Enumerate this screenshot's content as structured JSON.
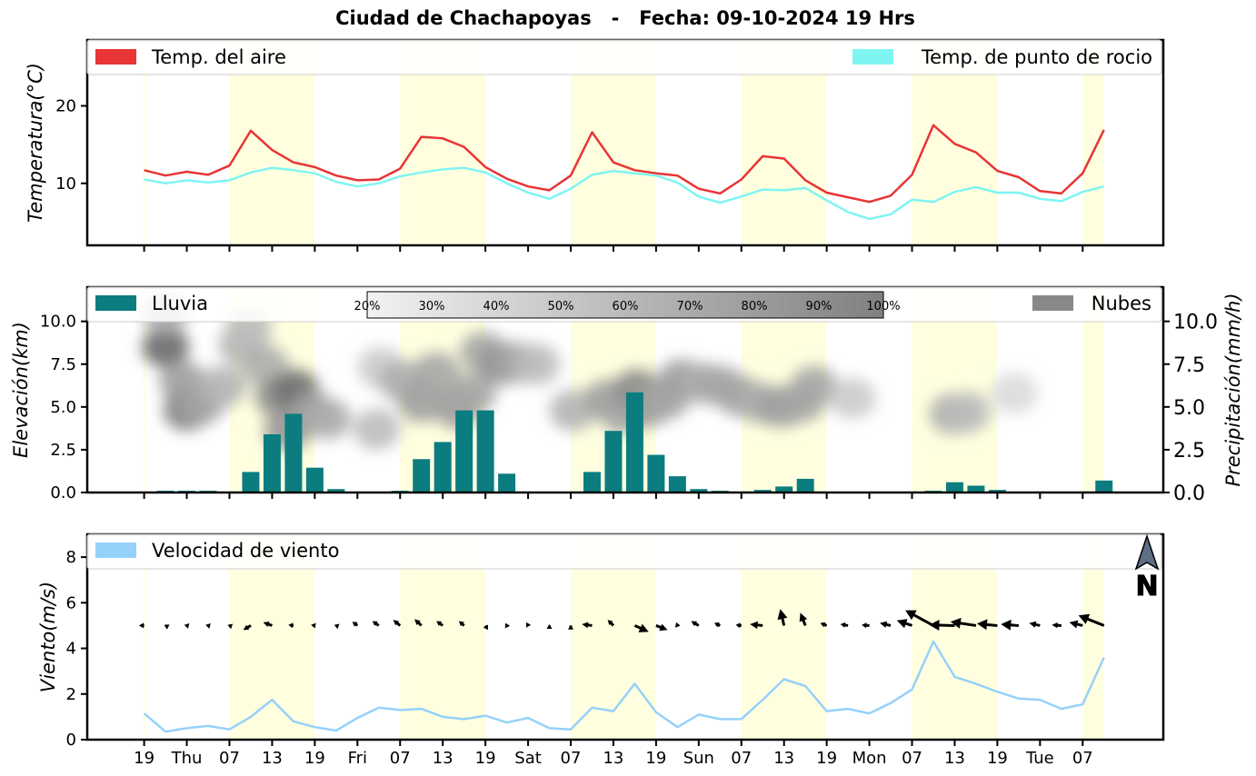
{
  "title": "Ciudad de Chachapoyas   -   Fecha: 09-10-2024 19 Hrs",
  "colors": {
    "temp": "#e83535",
    "dew": "#7ff5f2",
    "rain": "#0b7d80",
    "clouds": "#888888",
    "wind": "#96d1fa",
    "day": "#ffffe0"
  },
  "xticks": [
    "19",
    "Thu",
    "07",
    "13",
    "19",
    "Fri",
    "07",
    "13",
    "19",
    "Sat",
    "07",
    "13",
    "19",
    "Sun",
    "07",
    "13",
    "19",
    "Mon",
    "07",
    "13",
    "19",
    "Tue",
    "07"
  ],
  "chart_data": [
    {
      "type": "line",
      "ylabel": "Temperatura(°C)",
      "yticks": [
        10,
        20
      ],
      "ylim": [
        2,
        28.5
      ],
      "legend": [
        "Temp. del aire",
        "Temp. de punto de rocio"
      ],
      "series": [
        {
          "name": "Temp. del aire",
          "values": [
            11.7,
            11.0,
            11.5,
            11.1,
            12.3,
            16.8,
            14.3,
            12.7,
            12.1,
            11.0,
            10.4,
            10.5,
            11.9,
            16.0,
            15.8,
            14.7,
            12.1,
            10.6,
            9.6,
            9.1,
            11.0,
            16.6,
            12.7,
            11.7,
            11.3,
            11.0,
            9.3,
            8.7,
            10.5,
            13.5,
            13.2,
            10.4,
            8.8,
            8.2,
            7.6,
            8.4,
            11.1,
            17.5,
            15.1,
            14.0,
            11.6,
            10.8,
            9.0,
            8.7,
            11.3,
            16.9
          ]
        },
        {
          "name": "Temp. de punto de rocio",
          "values": [
            10.5,
            10.0,
            10.4,
            10.1,
            10.4,
            11.4,
            12.0,
            11.7,
            11.3,
            10.2,
            9.6,
            10.0,
            10.9,
            11.4,
            11.8,
            12.0,
            11.4,
            10.0,
            8.8,
            8.0,
            9.3,
            11.1,
            11.6,
            11.3,
            11.0,
            10.1,
            8.3,
            7.5,
            8.3,
            9.2,
            9.1,
            9.4,
            7.8,
            6.3,
            5.4,
            6.0,
            7.9,
            7.6,
            8.9,
            9.5,
            8.8,
            8.8,
            8.0,
            7.7,
            8.9,
            9.6
          ]
        }
      ]
    },
    {
      "type": "bar",
      "ylabel_left": "Elevación(km)",
      "ylabel_right": "Precipitación(mm/h)",
      "yticks": [
        "0.0",
        "2.5",
        "5.0",
        "7.5",
        "10.0"
      ],
      "ylim": [
        0,
        12
      ],
      "legend": [
        "Lluvia",
        "Nubes"
      ],
      "colorbar": [
        "20%",
        "30%",
        "40%",
        "50%",
        "60%",
        "70%",
        "80%",
        "90%",
        "100%"
      ],
      "values": [
        0,
        0.1,
        0.1,
        0.1,
        0,
        1.2,
        3.4,
        4.6,
        1.45,
        0.2,
        0,
        0,
        0.1,
        1.95,
        2.95,
        4.8,
        4.8,
        1.1,
        0,
        0,
        0,
        1.2,
        3.6,
        5.85,
        2.2,
        0.95,
        0.2,
        0.1,
        0,
        0.15,
        0.35,
        0.8,
        0.05,
        0,
        0,
        0,
        0,
        0.1,
        0.6,
        0.4,
        0.15,
        0,
        0,
        0,
        0.05,
        0.7
      ],
      "clouds": [
        {
          "x": 1,
          "y": 8.5,
          "d": 0.9
        },
        {
          "x": 1,
          "y": 10.5,
          "d": 0.45
        },
        {
          "x": 1.8,
          "y": 6.5,
          "d": 0.55
        },
        {
          "x": 2,
          "y": 4.8,
          "d": 0.75
        },
        {
          "x": 2.7,
          "y": 5.2,
          "d": 0.5
        },
        {
          "x": 3.7,
          "y": 6.2,
          "d": 0.4
        },
        {
          "x": 4.6,
          "y": 8.6,
          "d": 0.4
        },
        {
          "x": 4.9,
          "y": 9.6,
          "d": 0.35
        },
        {
          "x": 5.7,
          "y": 7.4,
          "d": 0.45
        },
        {
          "x": 6.3,
          "y": 5.6,
          "d": 0.65
        },
        {
          "x": 6.7,
          "y": 3.6,
          "d": 0.6
        },
        {
          "x": 7.1,
          "y": 6.0,
          "d": 0.85
        },
        {
          "x": 7.9,
          "y": 4.7,
          "d": 0.55
        },
        {
          "x": 8.6,
          "y": 4.3,
          "d": 0.45
        },
        {
          "x": 10.9,
          "y": 3.7,
          "d": 0.35
        },
        {
          "x": 11.1,
          "y": 7.3,
          "d": 0.25
        },
        {
          "x": 12.1,
          "y": 6.5,
          "d": 0.45
        },
        {
          "x": 13.0,
          "y": 5.3,
          "d": 0.55
        },
        {
          "x": 13.7,
          "y": 7.0,
          "d": 0.5
        },
        {
          "x": 14.7,
          "y": 4.9,
          "d": 0.55
        },
        {
          "x": 15.4,
          "y": 5.8,
          "d": 0.5
        },
        {
          "x": 15.9,
          "y": 8.2,
          "d": 0.5
        },
        {
          "x": 16.8,
          "y": 7.5,
          "d": 0.65
        },
        {
          "x": 17.4,
          "y": 7.6,
          "d": 0.5
        },
        {
          "x": 18.4,
          "y": 7.5,
          "d": 0.35
        },
        {
          "x": 20.1,
          "y": 4.8,
          "d": 0.4
        },
        {
          "x": 21.7,
          "y": 5.4,
          "d": 0.55
        },
        {
          "x": 22.5,
          "y": 4.6,
          "d": 0.5
        },
        {
          "x": 23.1,
          "y": 6.0,
          "d": 0.7
        },
        {
          "x": 23.6,
          "y": 5.0,
          "d": 0.55
        },
        {
          "x": 24.5,
          "y": 5.5,
          "d": 0.5
        },
        {
          "x": 25.2,
          "y": 6.6,
          "d": 0.55
        },
        {
          "x": 26.2,
          "y": 6.4,
          "d": 0.45
        },
        {
          "x": 27.1,
          "y": 6.2,
          "d": 0.5
        },
        {
          "x": 28.0,
          "y": 5.6,
          "d": 0.5
        },
        {
          "x": 29.0,
          "y": 5.2,
          "d": 0.45
        },
        {
          "x": 29.9,
          "y": 5.0,
          "d": 0.55
        },
        {
          "x": 30.8,
          "y": 5.3,
          "d": 0.5
        },
        {
          "x": 31.4,
          "y": 6.2,
          "d": 0.5
        },
        {
          "x": 33.2,
          "y": 5.5,
          "d": 0.25
        },
        {
          "x": 37.9,
          "y": 4.6,
          "d": 0.45
        },
        {
          "x": 38.6,
          "y": 4.7,
          "d": 0.35
        },
        {
          "x": 40.8,
          "y": 5.8,
          "d": 0.15
        }
      ]
    },
    {
      "type": "line",
      "ylabel": "Viento(m/s)",
      "yticks": [
        0,
        2,
        4,
        6,
        8
      ],
      "ylim": [
        0,
        9
      ],
      "legend": [
        "Velocidad de viento"
      ],
      "series": [
        {
          "name": "Velocidad de viento",
          "values": [
            1.15,
            0.35,
            0.5,
            0.6,
            0.45,
            1.0,
            1.75,
            0.8,
            0.55,
            0.4,
            0.95,
            1.4,
            1.3,
            1.35,
            1.0,
            0.9,
            1.05,
            0.75,
            0.95,
            0.5,
            0.45,
            1.4,
            1.25,
            2.45,
            1.2,
            0.55,
            1.1,
            0.9,
            0.9,
            1.75,
            2.65,
            2.35,
            1.25,
            1.35,
            1.15,
            1.6,
            2.2,
            4.3,
            2.75,
            2.45,
            2.1,
            1.8,
            1.75,
            1.35,
            1.55,
            3.6
          ]
        }
      ],
      "wind_u": [
        -0.4,
        -0.1,
        -0.2,
        -0.2,
        -0.15,
        -0.6,
        -0.7,
        -0.4,
        -0.3,
        -0.15,
        -0.4,
        -0.5,
        -0.55,
        -0.55,
        -0.5,
        -0.4,
        0.2,
        -0.1,
        -0.15,
        0.0,
        0.0,
        -0.8,
        -0.45,
        1.1,
        0.9,
        -0.1,
        -0.6,
        -0.45,
        -0.45,
        -1.0,
        -0.3,
        -0.4,
        -0.5,
        -0.6,
        -0.6,
        -0.85,
        -1.2,
        -2.2,
        -2.0,
        -2.0,
        -1.6,
        -1.4,
        -0.85,
        -0.75,
        -1.05,
        -2.0
      ],
      "wind_v": [
        0.0,
        0.05,
        0.05,
        0.05,
        0.05,
        -0.35,
        0.25,
        0.05,
        0.05,
        0.05,
        0.3,
        0.35,
        0.45,
        0.5,
        0.35,
        0.35,
        -0.35,
        0.2,
        0.25,
        0.1,
        0.05,
        0.1,
        0.45,
        -0.5,
        -0.35,
        0.25,
        0.35,
        0.2,
        0.05,
        0.1,
        1.3,
        1.0,
        0.2,
        0.1,
        0.05,
        0.2,
        0.4,
        1.2,
        0.05,
        0.3,
        0.15,
        0.1,
        0.2,
        0.05,
        0.25,
        0.8
      ],
      "north": "N"
    }
  ]
}
